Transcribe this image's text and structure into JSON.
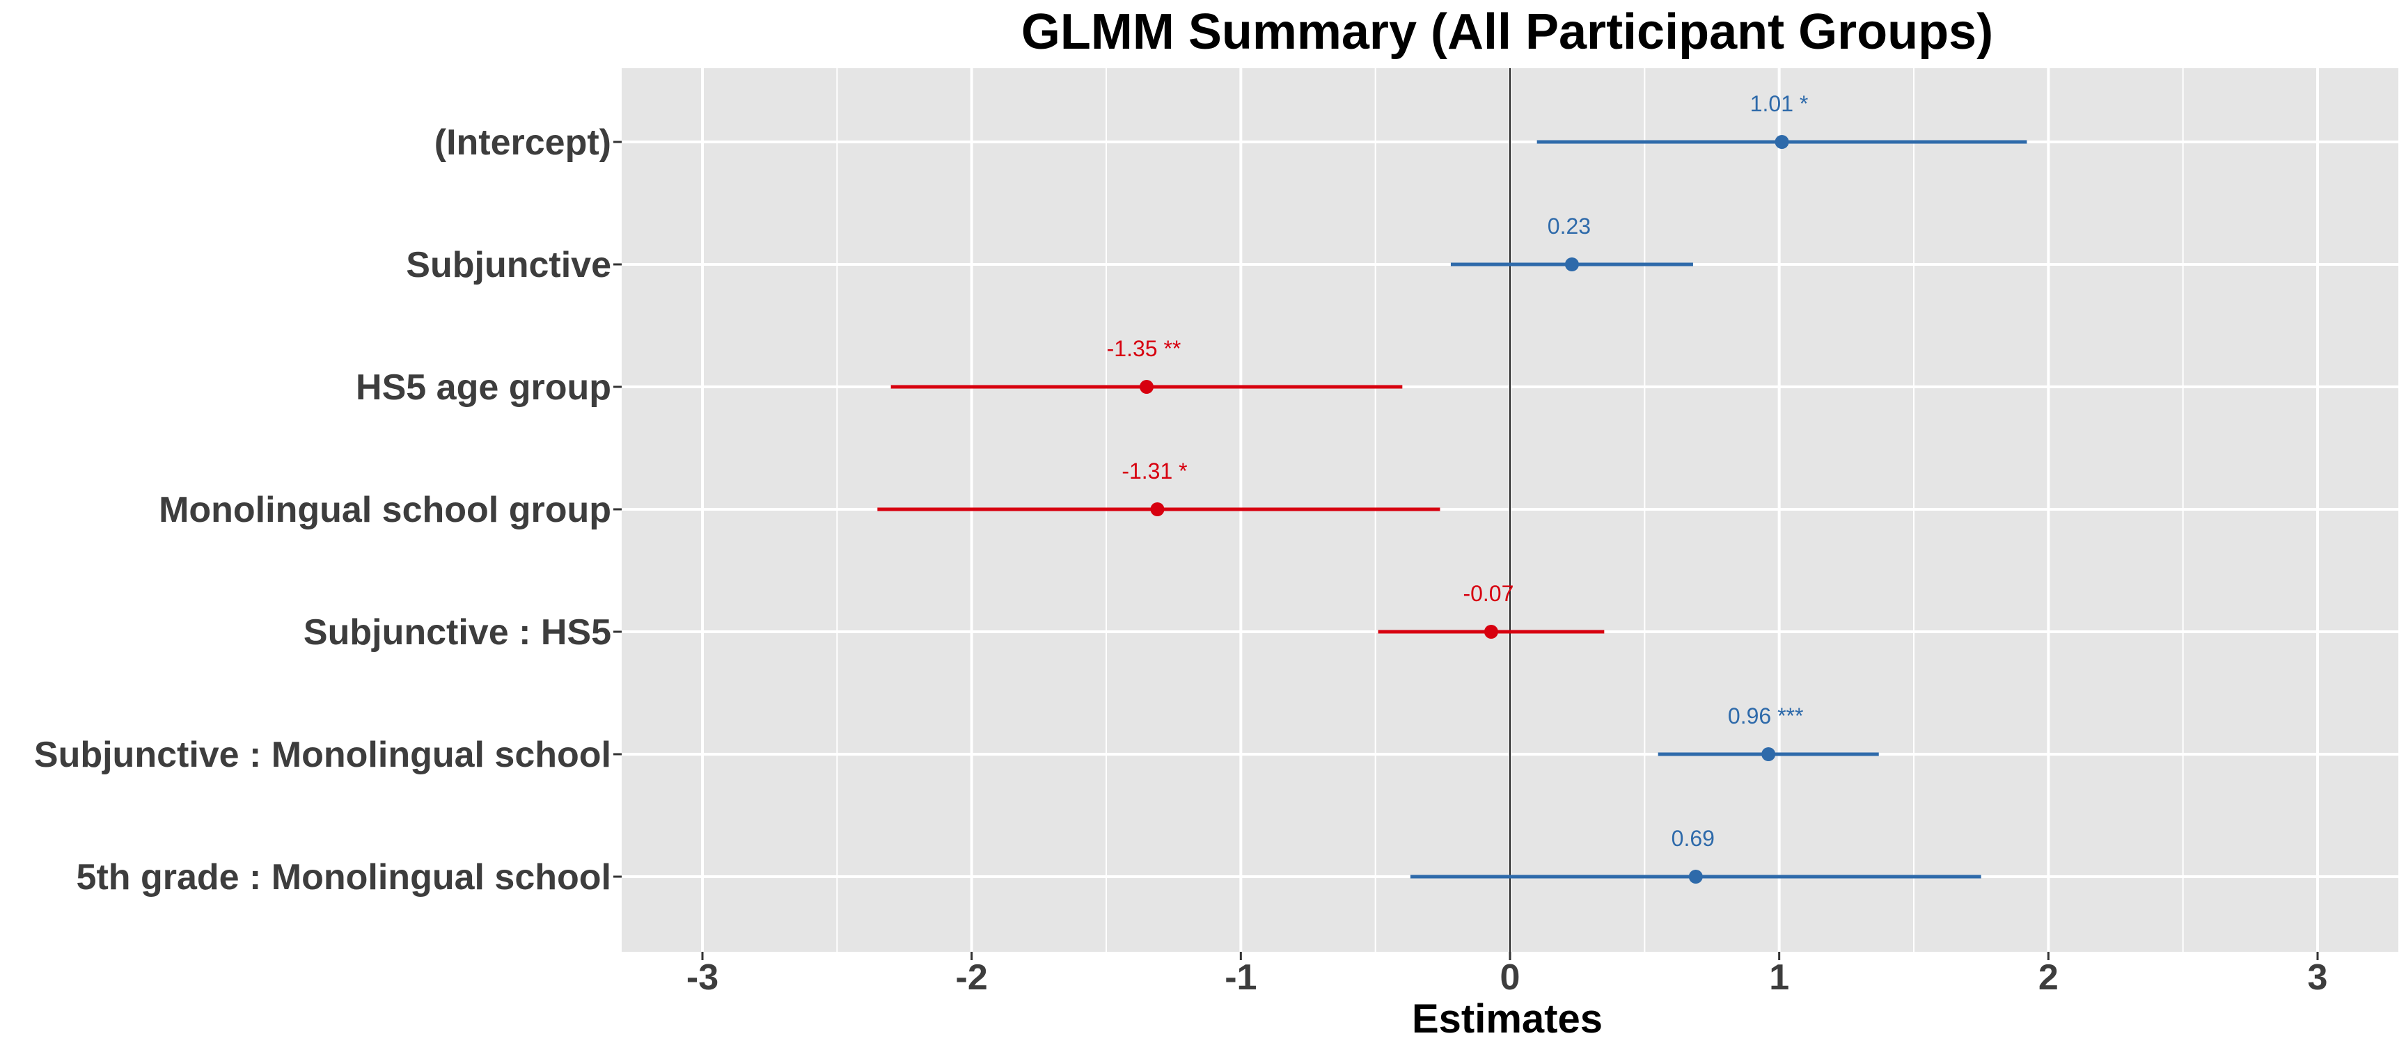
{
  "chart_data": {
    "type": "forest",
    "title": "GLMM Summary (All Participant Groups)",
    "xlabel": "Estimates",
    "ylabel": "",
    "xlim": [
      -3.3,
      3.3
    ],
    "x_ticks": [
      -3,
      -2,
      -1,
      0,
      1,
      2,
      3
    ],
    "x_tick_labels": [
      "-3",
      "-2",
      "-1",
      "0",
      "1",
      "2",
      "3"
    ],
    "grid": true,
    "reference_line": 0,
    "colors": {
      "positive": "#2e6aaa",
      "negative": "#d7000f",
      "panel": "#e5e5e5",
      "grid": "#ffffff"
    },
    "terms": [
      {
        "label": "(Intercept)",
        "estimate": 1.01,
        "ci_low": 0.1,
        "ci_high": 1.92,
        "estimate_label": "1.01 *"
      },
      {
        "label": "Subjunctive",
        "estimate": 0.23,
        "ci_low": -0.22,
        "ci_high": 0.68,
        "estimate_label": "0.23"
      },
      {
        "label": "HS5 age group",
        "estimate": -1.35,
        "ci_low": -2.3,
        "ci_high": -0.4,
        "estimate_label": "-1.35 **"
      },
      {
        "label": "Monolingual school group",
        "estimate": -1.31,
        "ci_low": -2.35,
        "ci_high": -0.26,
        "estimate_label": "-1.31 *"
      },
      {
        "label": "Subjunctive : HS5",
        "estimate": -0.07,
        "ci_low": -0.49,
        "ci_high": 0.35,
        "estimate_label": "-0.07"
      },
      {
        "label": "Subjunctive : Monolingual school",
        "estimate": 0.96,
        "ci_low": 0.55,
        "ci_high": 1.37,
        "estimate_label": "0.96 ***"
      },
      {
        "label": "5th grade : Monolingual school",
        "estimate": 0.69,
        "ci_low": -0.37,
        "ci_high": 1.75,
        "estimate_label": "0.69"
      }
    ]
  }
}
